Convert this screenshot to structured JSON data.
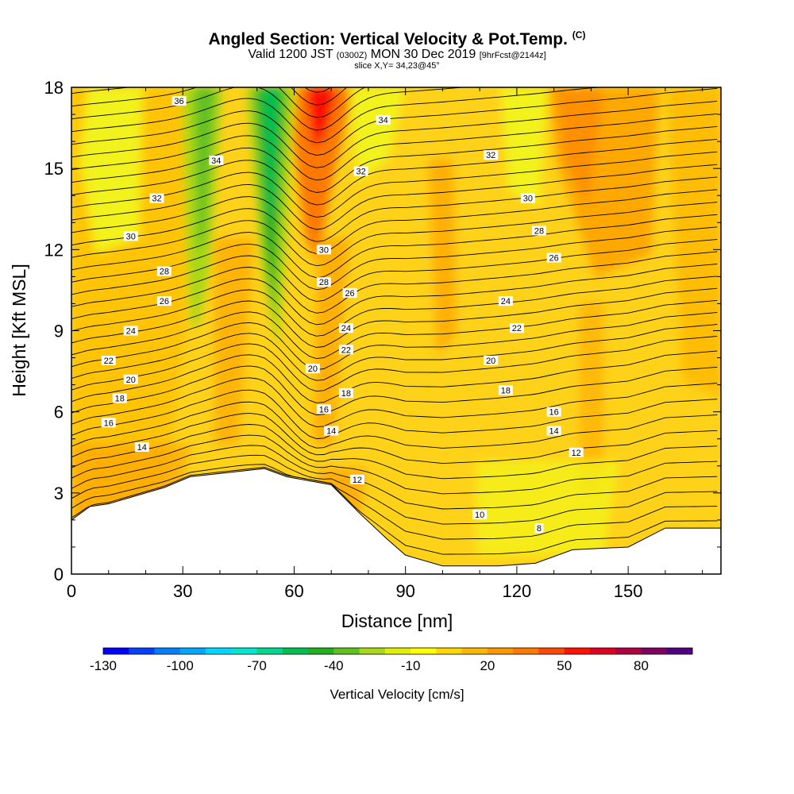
{
  "header": {
    "title": "Angled Section: Vertical Velocity & Pot.Temp.",
    "copyright": "(C)",
    "valid_line_a": "Valid 1200 JST",
    "valid_line_b": "(0300Z)",
    "valid_line_c": "MON 30 Dec 2019",
    "valid_line_d": "[9hrFcst@2144z]",
    "slice": "slice X,Y= 34,23@45°"
  },
  "chart_data": {
    "type": "heatmap",
    "xlabel": "Distance [nm]",
    "ylabel": "Height [Kft MSL]",
    "xlim": [
      0,
      175
    ],
    "ylim": [
      0,
      18
    ],
    "xticks": [
      "0",
      "30",
      "60",
      "90",
      "120",
      "150"
    ],
    "yticks": [
      "0",
      "3",
      "6",
      "9",
      "12",
      "15",
      "18"
    ],
    "colorbar": {
      "label": "Vertical Velocity [cm/s]",
      "tick_labels": [
        "-130",
        "-100",
        "-70",
        "-40",
        "-10",
        "20",
        "50",
        "80"
      ],
      "colors": [
        "#0000ff",
        "#0040ff",
        "#0080ff",
        "#00a8ff",
        "#00d8ff",
        "#00e8d0",
        "#00d890",
        "#00c050",
        "#20b020",
        "#60c020",
        "#a8d818",
        "#e0f000",
        "#ffff00",
        "#ffd800",
        "#ffb800",
        "#ff9800",
        "#ff7800",
        "#ff4800",
        "#ff1000",
        "#e00020",
        "#b00040",
        "#800060",
        "#500080"
      ]
    },
    "terrain_kft": [
      [
        0,
        2
      ],
      [
        5,
        2.5
      ],
      [
        10,
        2.6
      ],
      [
        25,
        3.2
      ],
      [
        32,
        3.6
      ],
      [
        52,
        3.9
      ],
      [
        58,
        3.6
      ],
      [
        70,
        3.3
      ],
      [
        78,
        2.2
      ],
      [
        85,
        1.3
      ],
      [
        90,
        0.7
      ],
      [
        100,
        0.3
      ],
      [
        115,
        0.3
      ],
      [
        125,
        0.4
      ],
      [
        135,
        0.9
      ],
      [
        150,
        1.0
      ],
      [
        160,
        1.7
      ],
      [
        175,
        1.7
      ]
    ],
    "contour_labels": [
      {
        "x": 29,
        "y": 17.5,
        "t": "36"
      },
      {
        "x": 39,
        "y": 15.3,
        "t": "34"
      },
      {
        "x": 23,
        "y": 13.9,
        "t": "32"
      },
      {
        "x": 16,
        "y": 12.5,
        "t": "30"
      },
      {
        "x": 25,
        "y": 11.2,
        "t": "28"
      },
      {
        "x": 25,
        "y": 10.1,
        "t": "26"
      },
      {
        "x": 16,
        "y": 9.0,
        "t": "24"
      },
      {
        "x": 10,
        "y": 7.9,
        "t": "22"
      },
      {
        "x": 16,
        "y": 7.2,
        "t": "20"
      },
      {
        "x": 13,
        "y": 6.5,
        "t": "18"
      },
      {
        "x": 10,
        "y": 5.6,
        "t": "16"
      },
      {
        "x": 19,
        "y": 4.7,
        "t": "14"
      },
      {
        "x": 84,
        "y": 16.8,
        "t": "34"
      },
      {
        "x": 78,
        "y": 14.9,
        "t": "32"
      },
      {
        "x": 68,
        "y": 12.0,
        "t": "30"
      },
      {
        "x": 68,
        "y": 10.8,
        "t": "28"
      },
      {
        "x": 75,
        "y": 10.4,
        "t": "26"
      },
      {
        "x": 74,
        "y": 9.1,
        "t": "24"
      },
      {
        "x": 74,
        "y": 8.3,
        "t": "22"
      },
      {
        "x": 65,
        "y": 7.6,
        "t": "20"
      },
      {
        "x": 74,
        "y": 6.7,
        "t": "18"
      },
      {
        "x": 68,
        "y": 6.1,
        "t": "16"
      },
      {
        "x": 70,
        "y": 5.3,
        "t": "14"
      },
      {
        "x": 77,
        "y": 3.5,
        "t": "12"
      },
      {
        "x": 113,
        "y": 15.5,
        "t": "32"
      },
      {
        "x": 123,
        "y": 13.9,
        "t": "30"
      },
      {
        "x": 126,
        "y": 12.7,
        "t": "28"
      },
      {
        "x": 130,
        "y": 11.7,
        "t": "26"
      },
      {
        "x": 117,
        "y": 10.1,
        "t": "24"
      },
      {
        "x": 120,
        "y": 9.1,
        "t": "22"
      },
      {
        "x": 113,
        "y": 7.9,
        "t": "20"
      },
      {
        "x": 117,
        "y": 6.8,
        "t": "18"
      },
      {
        "x": 130,
        "y": 6.0,
        "t": "16"
      },
      {
        "x": 130,
        "y": 5.3,
        "t": "14"
      },
      {
        "x": 136,
        "y": 4.5,
        "t": "12"
      },
      {
        "x": 110,
        "y": 2.2,
        "t": "10"
      },
      {
        "x": 126,
        "y": 1.7,
        "t": "8"
      }
    ]
  }
}
